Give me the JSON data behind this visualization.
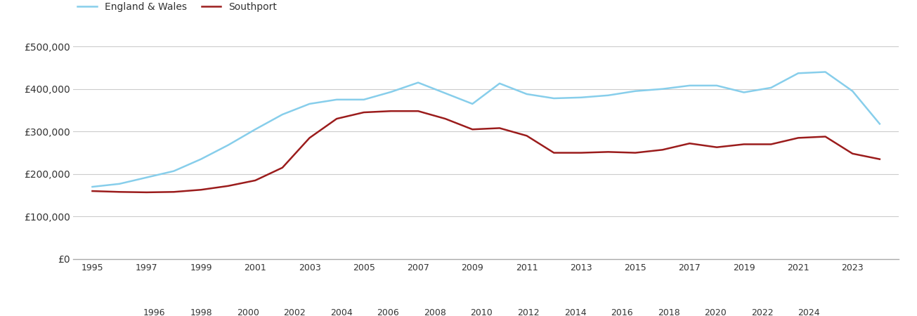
{
  "southport_years": [
    1995,
    1996,
    1997,
    1998,
    1999,
    2000,
    2001,
    2002,
    2003,
    2004,
    2005,
    2006,
    2007,
    2008,
    2009,
    2010,
    2011,
    2012,
    2013,
    2014,
    2015,
    2016,
    2017,
    2018,
    2019,
    2020,
    2021,
    2022,
    2023,
    2024
  ],
  "southport_values": [
    160000,
    158000,
    157000,
    158000,
    163000,
    172000,
    185000,
    215000,
    285000,
    330000,
    345000,
    348000,
    348000,
    330000,
    305000,
    308000,
    290000,
    250000,
    250000,
    252000,
    250000,
    257000,
    272000,
    263000,
    270000,
    270000,
    285000,
    288000,
    248000,
    235000
  ],
  "england_years": [
    1995,
    1996,
    1997,
    1998,
    1999,
    2000,
    2001,
    2002,
    2003,
    2004,
    2005,
    2006,
    2007,
    2008,
    2009,
    2010,
    2011,
    2012,
    2013,
    2014,
    2015,
    2016,
    2017,
    2018,
    2019,
    2020,
    2021,
    2022,
    2023,
    2024
  ],
  "england_values": [
    170000,
    177000,
    192000,
    207000,
    235000,
    268000,
    305000,
    340000,
    365000,
    375000,
    375000,
    393000,
    415000,
    390000,
    365000,
    413000,
    388000,
    378000,
    380000,
    385000,
    395000,
    400000,
    408000,
    408000,
    392000,
    403000,
    437000,
    440000,
    395000,
    318000
  ],
  "southport_color": "#9B1C1C",
  "england_color": "#87CEEB",
  "background_color": "#ffffff",
  "grid_color": "#cccccc",
  "ylim": [
    0,
    520000
  ],
  "yticks": [
    0,
    100000,
    200000,
    300000,
    400000,
    500000
  ],
  "ytick_labels": [
    "£0",
    "£100,000",
    "£200,000",
    "£300,000",
    "£400,000",
    "£500,000"
  ],
  "legend_southport": "Southport",
  "legend_england": "England & Wales",
  "line_width": 1.8,
  "odd_years": [
    1995,
    1997,
    1999,
    2001,
    2003,
    2005,
    2007,
    2009,
    2011,
    2013,
    2015,
    2017,
    2019,
    2021,
    2023
  ],
  "even_years": [
    1996,
    1998,
    2000,
    2002,
    2004,
    2006,
    2008,
    2010,
    2012,
    2014,
    2016,
    2018,
    2020,
    2022,
    2024
  ]
}
